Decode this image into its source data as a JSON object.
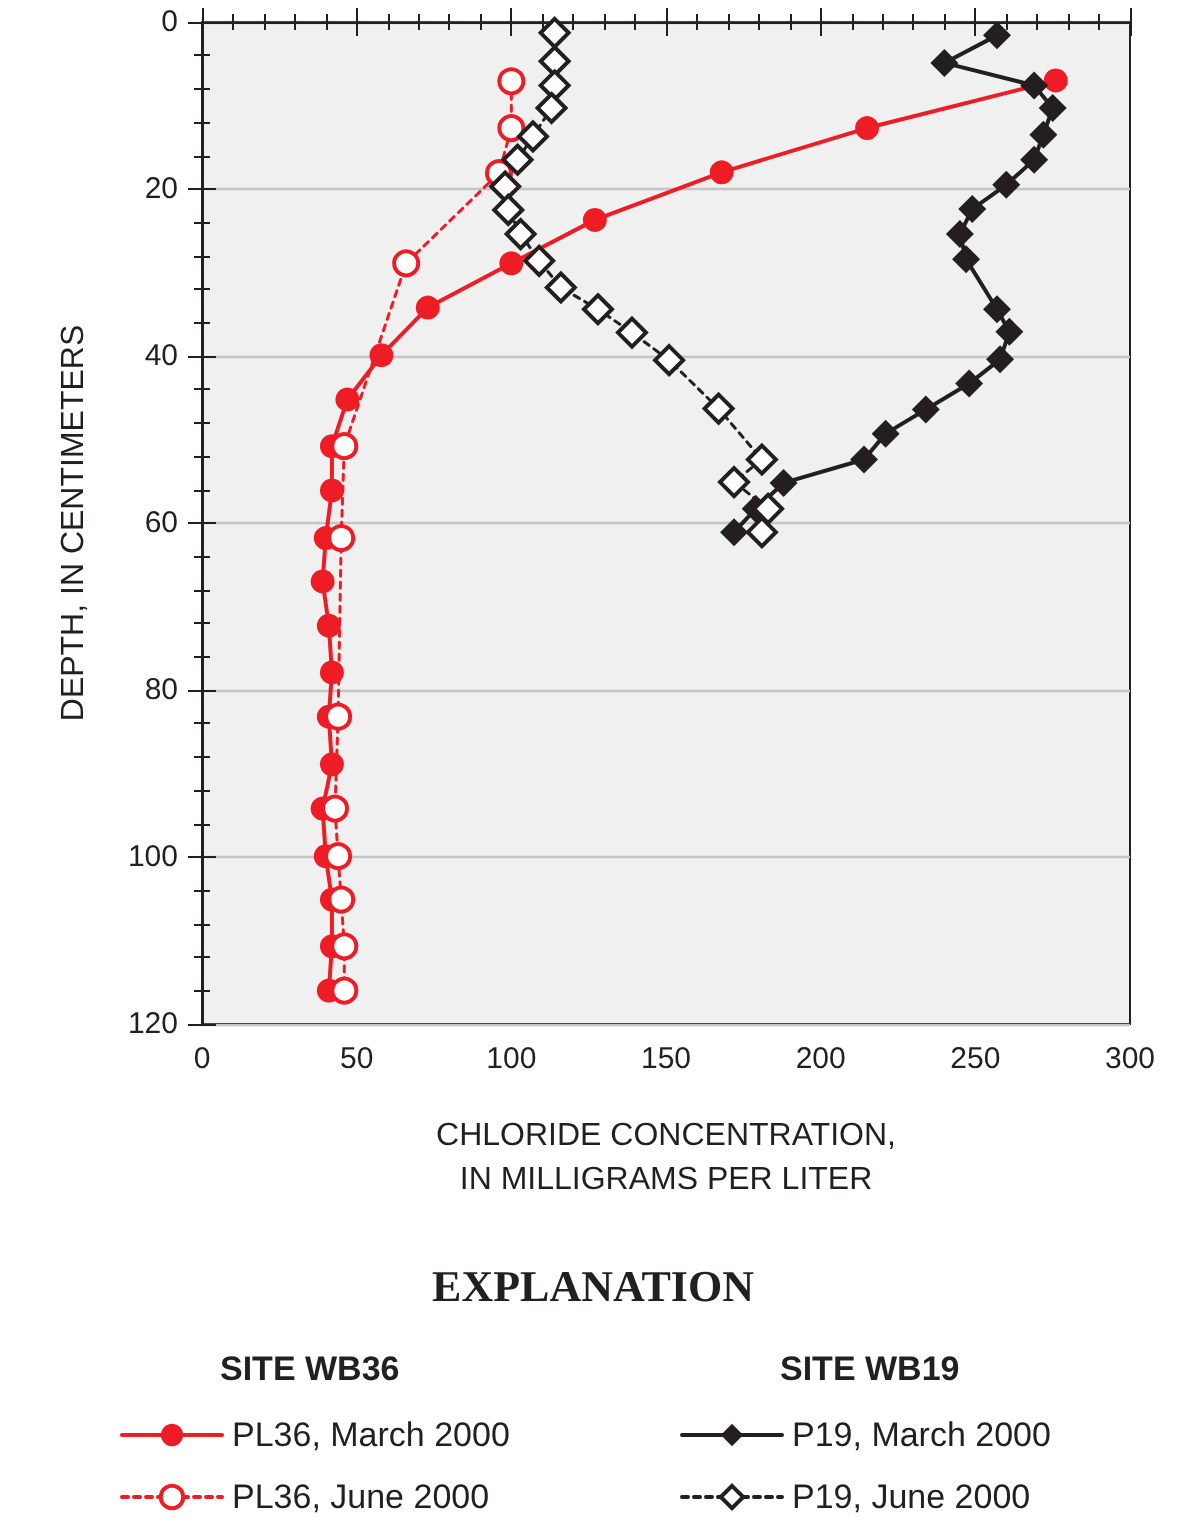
{
  "chart_data": {
    "type": "line",
    "xlabel": "CHLORIDE CONCENTRATION,\nIN MILLIGRAMS PER LITER",
    "ylabel": "DEPTH, IN CENTIMETERS",
    "legend_title": "EXPLANATION",
    "annotations": [
      "SITE WB36",
      "SITE WB19"
    ],
    "xlim": [
      0,
      300
    ],
    "xticks": [
      0,
      50,
      100,
      150,
      200,
      250,
      300
    ],
    "ylim": [
      120,
      0
    ],
    "yticks": [
      0,
      20,
      40,
      60,
      80,
      100,
      120
    ],
    "grid": "y",
    "legend": "bottom",
    "series": [
      {
        "name": "PL36, March 2000",
        "color": "#ee1c25",
        "marker": "circle",
        "line_style": "solid",
        "x": [
          276,
          215,
          168,
          127,
          100,
          73,
          58,
          47,
          42,
          42,
          40,
          39,
          41,
          42,
          41,
          42,
          39,
          40,
          42,
          42,
          41
        ],
        "values": [
          7,
          12.7,
          18,
          23.7,
          28.9,
          34.2,
          39.9,
          45.2,
          50.8,
          56.1,
          61.8,
          67,
          72.3,
          77.9,
          83.2,
          88.9,
          94.2,
          99.9,
          105.1,
          110.7,
          116
        ]
      },
      {
        "name": "PL36, June 2000",
        "color": "#ee1c25",
        "marker": "circle",
        "line_style": "dashed",
        "x": [
          100,
          100,
          96,
          66,
          46,
          45,
          44,
          43,
          44,
          45,
          46,
          46
        ],
        "values": [
          7.1,
          12.7,
          18.1,
          28.9,
          50.8,
          61.8,
          83.2,
          94.2,
          99.9,
          105.1,
          110.7,
          116
        ]
      },
      {
        "name": "P19, March 2000",
        "color": "#231f20",
        "marker": "diamond",
        "line_style": "solid",
        "x": [
          257,
          240,
          269,
          275,
          272,
          269,
          260,
          249,
          245,
          247,
          257,
          261,
          258,
          248,
          234,
          221,
          214,
          188,
          179,
          172
        ],
        "values": [
          1.6,
          4.9,
          7.6,
          10.3,
          13.5,
          16.5,
          19.5,
          22.4,
          25.4,
          28.4,
          34.4,
          37.1,
          40.4,
          43.3,
          46.4,
          49.3,
          52.4,
          55.2,
          58.3,
          61.1
        ]
      },
      {
        "name": "P19, June 2000",
        "color": "#231f20",
        "marker": "diamond",
        "line_style": "dashed",
        "x": [
          114,
          114,
          114,
          113,
          107,
          102,
          98,
          99,
          103,
          109,
          116,
          128,
          139,
          151,
          167,
          181,
          172,
          183,
          181
        ],
        "values": [
          1.3,
          4.7,
          7.6,
          10.3,
          13.7,
          16.5,
          19.7,
          22.5,
          25.4,
          28.6,
          31.8,
          34.4,
          37.2,
          40.5,
          46.3,
          52.4,
          55.1,
          58.3,
          61.1
        ]
      }
    ]
  }
}
